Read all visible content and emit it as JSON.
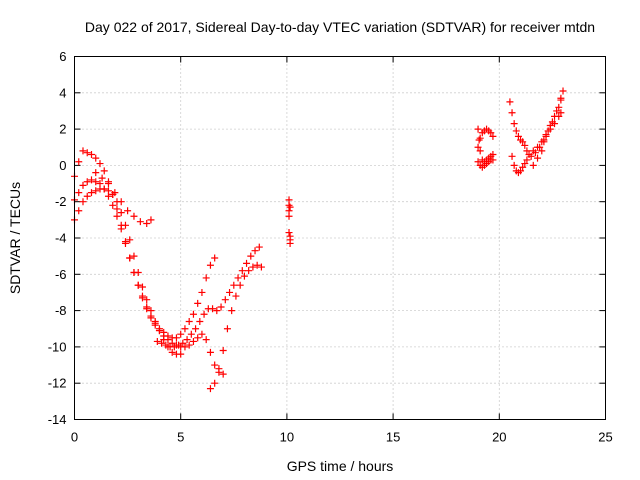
{
  "chart_data": {
    "type": "scatter",
    "title": "Day 022 of 2017, Sidereal Day-to-day VTEC variation (SDTVAR) for receiver mtdn",
    "xlabel": "GPS time / hours",
    "ylabel": "SDTVAR / TECUs",
    "xlim": [
      0,
      25
    ],
    "ylim": [
      -14,
      6
    ],
    "xticks": [
      0,
      5,
      10,
      15,
      20,
      25
    ],
    "yticks": [
      -14,
      -12,
      -10,
      -8,
      -6,
      -4,
      -2,
      0,
      2,
      4,
      6
    ],
    "grid": true,
    "marker": "plus",
    "color": "#ff0000",
    "series": [
      {
        "name": "track-1",
        "x": [
          0.0,
          0.2,
          0.4,
          0.6,
          0.8,
          1.0,
          1.2,
          1.4,
          1.6,
          1.8,
          2.0,
          2.2,
          2.4,
          2.6,
          2.8,
          3.0,
          3.2,
          3.4,
          3.6,
          3.8,
          4.0,
          4.2,
          4.4,
          4.6,
          4.8,
          5.0,
          5.2,
          5.4,
          5.6,
          5.8,
          6.0,
          6.2,
          6.4,
          6.6
        ],
        "y": [
          -0.6,
          0.2,
          0.8,
          0.7,
          0.6,
          0.4,
          0.1,
          -0.3,
          -0.9,
          -1.6,
          -2.4,
          -3.3,
          -4.2,
          -5.1,
          -5.9,
          -6.6,
          -7.2,
          -7.8,
          -8.3,
          -8.7,
          -9.0,
          -9.2,
          -9.4,
          -9.5,
          -9.5,
          -9.3,
          -9.0,
          -8.6,
          -8.2,
          -7.6,
          -7.0,
          -6.2,
          -5.5,
          -5.1
        ]
      },
      {
        "name": "track-2",
        "x": [
          0.0,
          0.2,
          0.4,
          0.6,
          0.8,
          1.0,
          1.2,
          1.4,
          1.6,
          1.8,
          2.0,
          2.2,
          2.4,
          2.6,
          2.8,
          3.0,
          3.2,
          3.4,
          3.6,
          3.8,
          4.0,
          4.2,
          4.4,
          4.6,
          4.8,
          5.0,
          5.2,
          5.4,
          5.6,
          5.8,
          6.0,
          6.2,
          6.4,
          6.6,
          6.8,
          7.0
        ],
        "y": [
          -1.9,
          -1.5,
          -1.1,
          -0.9,
          -0.8,
          -0.9,
          -1.0,
          -1.3,
          -1.7,
          -2.2,
          -2.8,
          -3.5,
          -4.3,
          -5.1,
          -5.9,
          -6.6,
          -7.3,
          -7.9,
          -8.4,
          -8.8,
          -9.1,
          -9.4,
          -9.6,
          -9.8,
          -9.9,
          -10.0,
          -10.0,
          -9.9,
          -9.7,
          -9.5,
          -9.3,
          -9.6,
          -10.3,
          -11.0,
          -11.4,
          -11.5
        ]
      },
      {
        "name": "track-3",
        "x": [
          0.0,
          0.2,
          0.4,
          0.6,
          0.8,
          1.0,
          1.2,
          1.4,
          1.6,
          1.8,
          2.0,
          2.2,
          2.4,
          2.6,
          2.8,
          3.0,
          3.2,
          3.4,
          3.6,
          3.8,
          4.0,
          4.2,
          4.4,
          4.6,
          4.8,
          5.0
        ],
        "y": [
          -3.0,
          -2.5,
          -2.0,
          -1.7,
          -1.5,
          -1.4,
          -1.3,
          -1.3,
          -1.4,
          -1.6,
          -2.0,
          -2.6,
          -3.3,
          -4.1,
          -5.0,
          -5.9,
          -6.7,
          -7.4,
          -8.0,
          -8.6,
          -9.1,
          -9.6,
          -10.0,
          -10.3,
          -10.4,
          -10.4
        ]
      },
      {
        "name": "track-4",
        "x": [
          1.0,
          1.3,
          1.6,
          1.9,
          2.2,
          2.5,
          2.8,
          3.1,
          3.4,
          3.6
        ],
        "y": [
          -0.4,
          -0.7,
          -1.0,
          -1.5,
          -2.0,
          -2.5,
          -2.8,
          -3.1,
          -3.2,
          -3.0
        ]
      },
      {
        "name": "track-5",
        "x": [
          3.9,
          4.1,
          4.3,
          4.5,
          4.7,
          4.9,
          5.1,
          5.3,
          5.5,
          5.7,
          5.9,
          6.1,
          6.3,
          6.5,
          6.7,
          6.9,
          7.1,
          7.3,
          7.5,
          7.7,
          7.9,
          8.1,
          8.3,
          8.5,
          8.7
        ],
        "y": [
          -9.7,
          -9.8,
          -9.9,
          -10.0,
          -10.0,
          -9.9,
          -9.8,
          -9.6,
          -9.3,
          -9.0,
          -8.6,
          -8.2,
          -7.9,
          -7.9,
          -8.0,
          -7.8,
          -7.4,
          -7.0,
          -6.6,
          -6.2,
          -5.8,
          -5.4,
          -5.0,
          -4.7,
          -4.5
        ]
      },
      {
        "name": "track-6",
        "x": [
          6.4,
          6.6,
          6.8,
          7.0,
          7.2,
          7.4,
          7.6,
          7.8,
          8.0,
          8.2,
          8.4,
          8.6,
          8.8
        ],
        "y": [
          -12.3,
          -12.0,
          -11.2,
          -10.2,
          -9.0,
          -8.0,
          -7.2,
          -6.6,
          -6.1,
          -5.8,
          -5.6,
          -5.5,
          -5.6
        ]
      },
      {
        "name": "track-7",
        "x": [
          10.1,
          10.1,
          10.1,
          10.1,
          10.1,
          10.15,
          10.15,
          10.15,
          10.15
        ],
        "y": [
          -1.9,
          -2.2,
          -2.5,
          -2.8,
          -3.7,
          -3.9,
          -4.1,
          -4.3,
          -2.3
        ]
      },
      {
        "name": "track-8",
        "x": [
          19.0,
          19.05,
          19.1,
          19.2,
          19.3,
          19.4,
          19.5,
          19.6,
          19.7,
          19.7,
          19.6,
          19.5,
          19.4,
          19.3,
          19.2,
          19.1,
          19.0
        ],
        "y": [
          2.0,
          1.4,
          0.8,
          0.3,
          0.2,
          0.3,
          0.4,
          0.5,
          0.6,
          1.6,
          1.8,
          1.9,
          2.0,
          1.9,
          1.8,
          1.5,
          1.0
        ]
      },
      {
        "name": "track-9",
        "x": [
          19.0,
          19.1,
          19.2,
          19.3,
          19.4,
          19.5,
          19.6,
          19.7
        ],
        "y": [
          0.2,
          0.0,
          -0.1,
          0.0,
          0.1,
          0.2,
          0.3,
          0.3
        ]
      },
      {
        "name": "track-10",
        "x": [
          20.5,
          20.6,
          20.7,
          20.8,
          20.9,
          21.0,
          21.1,
          21.2,
          21.3,
          21.4,
          21.6,
          21.8,
          22.0,
          22.2,
          22.4,
          22.6,
          22.8,
          22.9
        ],
        "y": [
          3.5,
          2.9,
          2.3,
          1.9,
          1.6,
          1.4,
          1.3,
          1.1,
          0.8,
          0.6,
          0.8,
          1.0,
          1.3,
          1.6,
          2.0,
          2.3,
          2.7,
          2.9
        ]
      },
      {
        "name": "track-11",
        "x": [
          20.6,
          20.7,
          20.8,
          20.9,
          21.0,
          21.1,
          21.2,
          21.3,
          21.5,
          21.7,
          21.9,
          22.1,
          22.3,
          22.5,
          22.7,
          22.9
        ],
        "y": [
          0.5,
          0.0,
          -0.3,
          -0.4,
          -0.3,
          -0.1,
          0.1,
          0.3,
          0.5,
          0.7,
          1.0,
          1.4,
          1.9,
          2.4,
          3.0,
          3.6
        ]
      },
      {
        "name": "track-12",
        "x": [
          21.6,
          21.8,
          22.0,
          22.1,
          22.2,
          22.4,
          22.6,
          22.8,
          22.9,
          23.0
        ],
        "y": [
          0.0,
          0.4,
          0.8,
          1.3,
          1.7,
          2.2,
          2.7,
          3.2,
          3.7,
          4.1
        ]
      }
    ]
  }
}
